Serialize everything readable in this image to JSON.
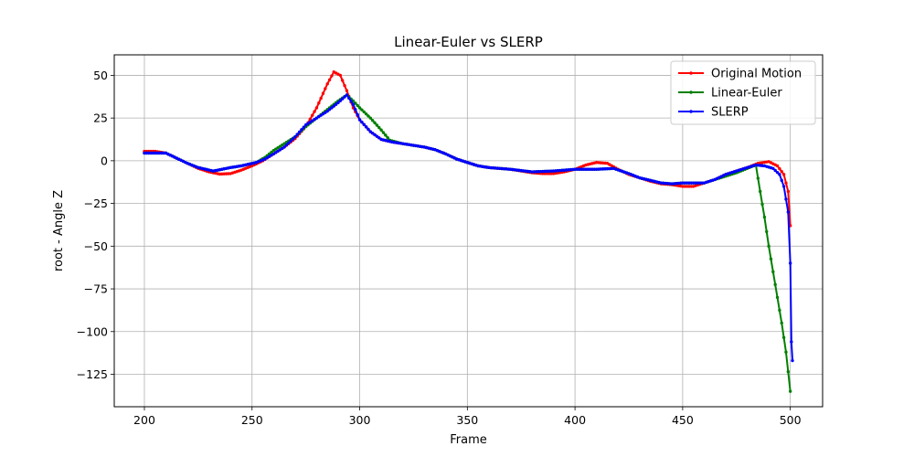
{
  "chart_data": {
    "type": "line",
    "title": "Linear-Euler vs SLERP",
    "xlabel": "Frame",
    "ylabel": "root - Angle Z",
    "xlim": [
      186,
      515
    ],
    "ylim": [
      -144,
      62
    ],
    "xticks": [
      200,
      250,
      300,
      350,
      400,
      450,
      500
    ],
    "yticks": [
      50,
      25,
      0,
      -25,
      -50,
      -75,
      -100,
      -125
    ],
    "grid": true,
    "legend": "top-right",
    "series": [
      {
        "name": "Original Motion",
        "color": "#ff0000",
        "points": [
          [
            200,
            5.5
          ],
          [
            205,
            5.5
          ],
          [
            210,
            4.5
          ],
          [
            215,
            1.5
          ],
          [
            220,
            -1.5
          ],
          [
            225,
            -4.5
          ],
          [
            230,
            -6.5
          ],
          [
            235,
            -7.8
          ],
          [
            240,
            -7.5
          ],
          [
            245,
            -5.5
          ],
          [
            250,
            -3
          ],
          [
            255,
            0
          ],
          [
            260,
            4
          ],
          [
            265,
            8
          ],
          [
            270,
            13
          ],
          [
            275,
            20
          ],
          [
            280,
            31
          ],
          [
            285,
            45
          ],
          [
            288,
            52
          ],
          [
            291,
            50
          ],
          [
            294,
            41
          ],
          [
            297,
            31
          ],
          [
            300,
            24
          ],
          [
            305,
            17
          ],
          [
            310,
            12.5
          ],
          [
            315,
            11
          ],
          [
            320,
            10
          ],
          [
            325,
            9
          ],
          [
            330,
            8
          ],
          [
            335,
            6.5
          ],
          [
            340,
            4
          ],
          [
            345,
            1
          ],
          [
            350,
            -1
          ],
          [
            355,
            -3
          ],
          [
            360,
            -4
          ],
          [
            370,
            -5
          ],
          [
            380,
            -7
          ],
          [
            385,
            -7.5
          ],
          [
            390,
            -7.5
          ],
          [
            395,
            -6.5
          ],
          [
            400,
            -5
          ],
          [
            405,
            -2.5
          ],
          [
            410,
            -1
          ],
          [
            415,
            -1.5
          ],
          [
            420,
            -5
          ],
          [
            425,
            -8
          ],
          [
            430,
            -10
          ],
          [
            435,
            -12
          ],
          [
            440,
            -13.5
          ],
          [
            445,
            -14
          ],
          [
            450,
            -15
          ],
          [
            455,
            -15
          ],
          [
            460,
            -13
          ],
          [
            465,
            -11
          ],
          [
            470,
            -8
          ],
          [
            475,
            -6
          ],
          [
            480,
            -4
          ],
          [
            485,
            -1.5
          ],
          [
            490,
            -0.5
          ],
          [
            494,
            -3
          ],
          [
            497,
            -8
          ],
          [
            499,
            -18
          ],
          [
            500,
            -38
          ]
        ]
      },
      {
        "name": "Linear-Euler",
        "color": "#008000",
        "points": [
          [
            200,
            4.5
          ],
          [
            205,
            4.5
          ],
          [
            210,
            4.5
          ],
          [
            215,
            1.5
          ],
          [
            220,
            -1.5
          ],
          [
            225,
            -4
          ],
          [
            232,
            -6
          ],
          [
            240,
            -4
          ],
          [
            245,
            -3
          ],
          [
            252,
            -1
          ],
          [
            256,
            2
          ],
          [
            260,
            6
          ],
          [
            265,
            10
          ],
          [
            270,
            14
          ],
          [
            275,
            20
          ],
          [
            280,
            25
          ],
          [
            285,
            30
          ],
          [
            290,
            35
          ],
          [
            294,
            38.5
          ],
          [
            297,
            35
          ],
          [
            300,
            31
          ],
          [
            305,
            25
          ],
          [
            310,
            18
          ],
          [
            314,
            12
          ],
          [
            320,
            10
          ],
          [
            330,
            8
          ],
          [
            335,
            6.5
          ],
          [
            340,
            4
          ],
          [
            345,
            1
          ],
          [
            350,
            -1
          ],
          [
            355,
            -3
          ],
          [
            360,
            -4
          ],
          [
            370,
            -5
          ],
          [
            380,
            -6.5
          ],
          [
            390,
            -6
          ],
          [
            400,
            -5
          ],
          [
            410,
            -5
          ],
          [
            418,
            -4.5
          ],
          [
            425,
            -7.5
          ],
          [
            430,
            -10
          ],
          [
            435,
            -11.5
          ],
          [
            440,
            -13
          ],
          [
            445,
            -13.5
          ],
          [
            450,
            -13
          ],
          [
            460,
            -13
          ],
          [
            465,
            -11
          ],
          [
            470,
            -9
          ],
          [
            475,
            -7
          ],
          [
            480,
            -4.5
          ],
          [
            484,
            -2.5
          ],
          [
            486,
            -18
          ],
          [
            488,
            -33
          ],
          [
            490,
            -50
          ],
          [
            492,
            -65
          ],
          [
            494,
            -80
          ],
          [
            496,
            -95
          ],
          [
            498,
            -112
          ],
          [
            500,
            -135
          ]
        ]
      },
      {
        "name": "SLERP",
        "color": "#0000ff",
        "points": [
          [
            200,
            4.5
          ],
          [
            205,
            4.5
          ],
          [
            210,
            4.5
          ],
          [
            215,
            1.5
          ],
          [
            220,
            -1.5
          ],
          [
            225,
            -4
          ],
          [
            232,
            -6
          ],
          [
            240,
            -4
          ],
          [
            245,
            -3
          ],
          [
            252,
            -1
          ],
          [
            256,
            1
          ],
          [
            260,
            4
          ],
          [
            265,
            8
          ],
          [
            270,
            14
          ],
          [
            275,
            21
          ],
          [
            280,
            25
          ],
          [
            285,
            29
          ],
          [
            290,
            34
          ],
          [
            294,
            38.5
          ],
          [
            297,
            33
          ],
          [
            300,
            24
          ],
          [
            305,
            17
          ],
          [
            310,
            12.5
          ],
          [
            315,
            11
          ],
          [
            320,
            10
          ],
          [
            330,
            8
          ],
          [
            335,
            6.5
          ],
          [
            340,
            4
          ],
          [
            345,
            1
          ],
          [
            350,
            -1
          ],
          [
            355,
            -3
          ],
          [
            360,
            -4
          ],
          [
            370,
            -5
          ],
          [
            380,
            -6.5
          ],
          [
            390,
            -6
          ],
          [
            400,
            -5
          ],
          [
            410,
            -5
          ],
          [
            418,
            -4.5
          ],
          [
            425,
            -7.5
          ],
          [
            430,
            -10
          ],
          [
            435,
            -11.5
          ],
          [
            440,
            -13
          ],
          [
            445,
            -13.5
          ],
          [
            450,
            -13
          ],
          [
            460,
            -13
          ],
          [
            465,
            -11
          ],
          [
            470,
            -8
          ],
          [
            475,
            -6
          ],
          [
            480,
            -4
          ],
          [
            484,
            -2.5
          ],
          [
            488,
            -3
          ],
          [
            492,
            -4.5
          ],
          [
            495,
            -8
          ],
          [
            497,
            -15
          ],
          [
            499,
            -30
          ],
          [
            500,
            -60
          ],
          [
            500.5,
            -106
          ],
          [
            501,
            -117
          ]
        ]
      }
    ]
  }
}
